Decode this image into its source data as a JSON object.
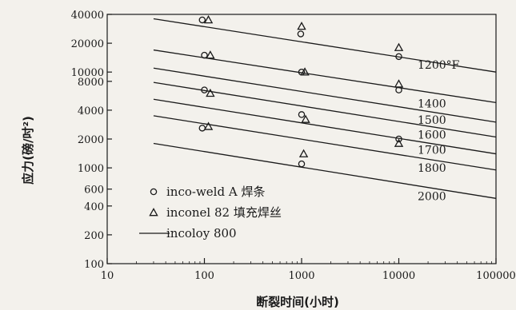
{
  "chart_data": {
    "type": "scatter",
    "title": "",
    "xlabel": "断裂时间(小时)",
    "ylabel": "应力(磅/吋²)",
    "x_scale": "log",
    "y_scale": "log",
    "xlim": [
      10,
      100000
    ],
    "ylim": [
      100,
      40000
    ],
    "x_ticks": [
      "10",
      "100",
      "1000",
      "10000",
      "100000"
    ],
    "y_ticks": [
      "40000",
      "20000",
      "10000",
      "8000",
      "4000",
      "2000",
      "1000",
      "600",
      "400",
      "200",
      "100"
    ],
    "y_tick_values": [
      40000,
      20000,
      10000,
      8000,
      4000,
      2000,
      1000,
      600,
      400,
      200,
      100
    ],
    "series": [
      {
        "name": "incoloy 800",
        "kind": "line",
        "curves": [
          {
            "label": "1200°F",
            "x": [
              30,
              100000
            ],
            "y": [
              36000,
              10000
            ]
          },
          {
            "label": "1400",
            "x": [
              30,
              100000
            ],
            "y": [
              17000,
              4800
            ]
          },
          {
            "label": "1500",
            "x": [
              30,
              100000
            ],
            "y": [
              11000,
              3000
            ]
          },
          {
            "label": "1600",
            "x": [
              30,
              100000
            ],
            "y": [
              7800,
              2100
            ]
          },
          {
            "label": "1700",
            "x": [
              30,
              100000
            ],
            "y": [
              5200,
              1400
            ]
          },
          {
            "label": "1800",
            "x": [
              30,
              100000
            ],
            "y": [
              3500,
              950
            ]
          },
          {
            "label": "2000",
            "x": [
              30,
              100000
            ],
            "y": [
              1800,
              480
            ]
          }
        ]
      },
      {
        "name": "inco-weld A 焊条",
        "kind": "scatter",
        "marker": "circle",
        "points": [
          {
            "x": 95,
            "y": 35000
          },
          {
            "x": 100,
            "y": 15000
          },
          {
            "x": 100,
            "y": 6500
          },
          {
            "x": 95,
            "y": 2600
          },
          {
            "x": 980,
            "y": 25000
          },
          {
            "x": 1000,
            "y": 10000
          },
          {
            "x": 1000,
            "y": 3600
          },
          {
            "x": 1000,
            "y": 1100
          },
          {
            "x": 10000,
            "y": 14500
          },
          {
            "x": 10000,
            "y": 6500
          },
          {
            "x": 10000,
            "y": 2000
          }
        ]
      },
      {
        "name": "inconel 82 填充焊丝",
        "kind": "scatter",
        "marker": "triangle",
        "points": [
          {
            "x": 110,
            "y": 35000
          },
          {
            "x": 115,
            "y": 15000
          },
          {
            "x": 115,
            "y": 6000
          },
          {
            "x": 110,
            "y": 2700
          },
          {
            "x": 1000,
            "y": 30000
          },
          {
            "x": 1080,
            "y": 10000
          },
          {
            "x": 1100,
            "y": 3200
          },
          {
            "x": 1050,
            "y": 1400
          },
          {
            "x": 10000,
            "y": 18000
          },
          {
            "x": 10000,
            "y": 7500
          },
          {
            "x": 10000,
            "y": 1800
          }
        ]
      }
    ],
    "legend": {
      "placement": "bottom-left",
      "entries": [
        {
          "marker": "circle",
          "label": "inco-weld A 焊条"
        },
        {
          "marker": "triangle",
          "label": "inconel 82 填充焊丝"
        },
        {
          "marker": "line",
          "label": "incoloy 800"
        }
      ]
    },
    "grid": false
  }
}
